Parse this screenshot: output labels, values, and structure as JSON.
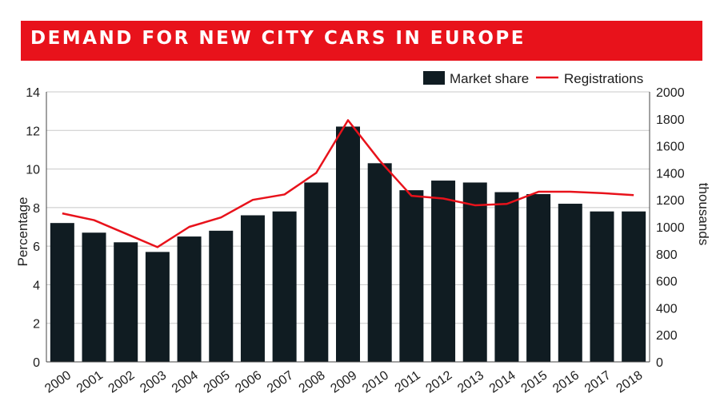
{
  "title": "DEMAND FOR NEW CITY CARS IN EUROPE",
  "colors": {
    "title_band": "#e8121b",
    "bar": "#101c22",
    "line": "#e8121b",
    "grid": "#c8c8c8"
  },
  "chart_data": {
    "type": "bar",
    "title": "DEMAND FOR NEW CITY CARS IN EUROPE",
    "categories": [
      "2000",
      "2001",
      "2002",
      "2003",
      "2004",
      "2005",
      "2006",
      "2007",
      "2008",
      "2009",
      "2010",
      "2011",
      "2012",
      "2013",
      "2014",
      "2015",
      "2016",
      "2017",
      "2018"
    ],
    "series": [
      {
        "name": "Market share",
        "type": "bar",
        "axis": "left",
        "values": [
          7.2,
          6.7,
          6.2,
          5.7,
          6.5,
          6.8,
          7.6,
          7.8,
          9.3,
          12.2,
          10.3,
          8.9,
          9.4,
          9.3,
          8.8,
          8.7,
          8.2,
          7.8,
          7.8
        ]
      },
      {
        "name": "Registrations",
        "type": "line",
        "axis": "right",
        "values": [
          1100,
          1050,
          950,
          850,
          1000,
          1070,
          1200,
          1240,
          1400,
          1790,
          1490,
          1230,
          1210,
          1160,
          1170,
          1260,
          1260,
          1250,
          1235
        ]
      }
    ],
    "ylabel": "Percentage",
    "ylim": [
      0,
      14
    ],
    "yticks": [
      "0",
      "2",
      "4",
      "6",
      "8",
      "10",
      "12",
      "14"
    ],
    "y2label": "thousands",
    "y2lim": [
      0,
      2000
    ],
    "y2ticks": [
      "0",
      "200",
      "400",
      "600",
      "800",
      "1000",
      "1200",
      "1400",
      "1600",
      "1800",
      "2000"
    ],
    "grid": "horizontal",
    "legend": "top-right"
  }
}
